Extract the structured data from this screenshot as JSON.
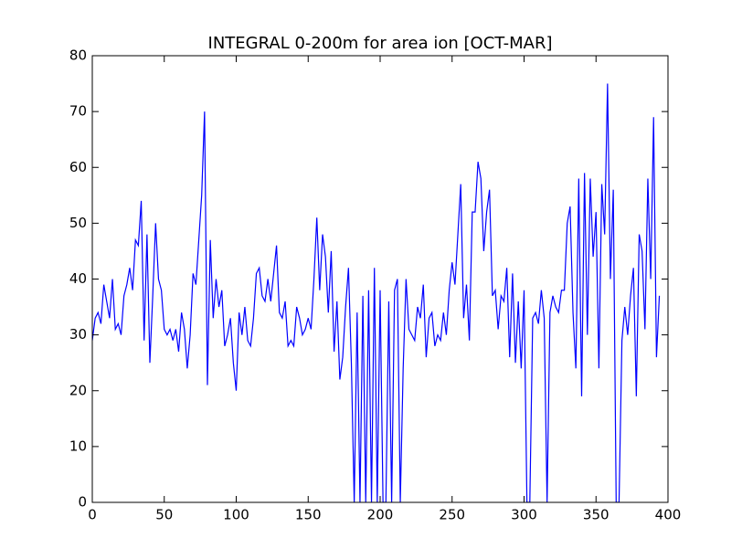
{
  "chart_data": {
    "type": "line",
    "title": "INTEGRAL 0-200m for area ion [OCT-MAR]",
    "x": [
      0,
      2,
      4,
      6,
      8,
      10,
      12,
      14,
      16,
      18,
      20,
      22,
      24,
      26,
      28,
      30,
      32,
      34,
      36,
      38,
      40,
      42,
      44,
      46,
      48,
      50,
      52,
      54,
      56,
      58,
      60,
      62,
      64,
      66,
      68,
      70,
      72,
      74,
      76,
      78,
      80,
      82,
      84,
      86,
      88,
      90,
      92,
      94,
      96,
      98,
      100,
      102,
      104,
      106,
      108,
      110,
      112,
      114,
      116,
      118,
      120,
      122,
      124,
      126,
      128,
      130,
      132,
      134,
      136,
      138,
      140,
      142,
      144,
      146,
      148,
      150,
      152,
      154,
      156,
      158,
      160,
      162,
      164,
      166,
      168,
      170,
      172,
      174,
      176,
      178,
      180,
      182,
      184,
      186,
      188,
      190,
      192,
      194,
      196,
      198,
      200,
      202,
      204,
      206,
      208,
      210,
      212,
      214,
      216,
      218,
      220,
      222,
      224,
      226,
      228,
      230,
      232,
      234,
      236,
      238,
      240,
      242,
      244,
      246,
      248,
      250,
      252,
      254,
      256,
      258,
      260,
      262,
      264,
      266,
      268,
      270,
      272,
      274,
      276,
      278,
      280,
      282,
      284,
      286,
      288,
      290,
      292,
      294,
      296,
      298,
      300,
      302,
      304,
      306,
      308,
      310,
      312,
      314,
      316,
      318,
      320,
      322,
      324,
      326,
      328,
      330,
      332,
      334,
      336,
      338,
      340,
      342,
      344,
      346,
      348,
      350,
      352,
      354,
      356,
      358,
      360,
      362,
      364,
      366,
      368,
      370,
      372,
      374,
      376,
      378,
      380,
      382,
      384,
      386,
      388,
      390,
      392,
      394
    ],
    "series": [
      {
        "color": "#0000ff",
        "values": [
          29,
          33,
          34,
          32,
          39,
          36,
          33,
          40,
          31,
          32,
          30,
          37,
          39,
          42,
          38,
          47,
          46,
          54,
          29,
          48,
          25,
          37,
          50,
          40,
          38,
          31,
          30,
          31,
          29,
          31,
          27,
          34,
          31,
          24,
          30,
          41,
          39,
          47,
          55,
          70,
          21,
          47,
          33,
          40,
          35,
          38,
          28,
          30,
          33,
          25,
          20,
          34,
          30,
          35,
          29,
          28,
          33,
          41,
          42,
          37,
          36,
          40,
          36,
          41,
          46,
          34,
          33,
          36,
          28,
          29,
          28,
          35,
          33,
          30,
          31,
          33,
          31,
          40,
          51,
          38,
          48,
          44,
          34,
          45,
          27,
          36,
          22,
          26,
          35,
          42,
          25,
          0,
          34,
          0,
          37,
          0,
          38,
          0,
          42,
          0,
          38,
          0,
          0,
          36,
          0,
          38,
          40,
          0,
          24,
          40,
          31,
          30,
          29,
          35,
          33,
          39,
          26,
          33,
          34,
          28,
          30,
          29,
          34,
          30,
          38,
          43,
          39,
          48,
          57,
          33,
          39,
          29,
          52,
          52,
          61,
          58,
          45,
          52,
          56,
          37,
          38,
          31,
          37,
          36,
          42,
          26,
          41,
          25,
          36,
          24,
          38,
          0,
          0,
          33,
          34,
          32,
          38,
          33,
          0,
          34,
          37,
          35,
          34,
          38,
          38,
          50,
          53,
          34,
          24,
          58,
          19,
          59,
          30,
          58,
          44,
          52,
          24,
          57,
          48,
          75,
          40,
          56,
          0,
          0,
          29,
          35,
          30,
          37,
          42,
          19,
          48,
          45,
          31,
          58,
          40,
          69,
          26,
          37
        ]
      }
    ],
    "xlim": [
      0,
      400
    ],
    "xticks": [
      0,
      50,
      100,
      150,
      200,
      250,
      300,
      350,
      400
    ],
    "ylim": [
      0,
      80
    ],
    "yticks": [
      0,
      10,
      20,
      30,
      40,
      50,
      60,
      70,
      80
    ]
  }
}
